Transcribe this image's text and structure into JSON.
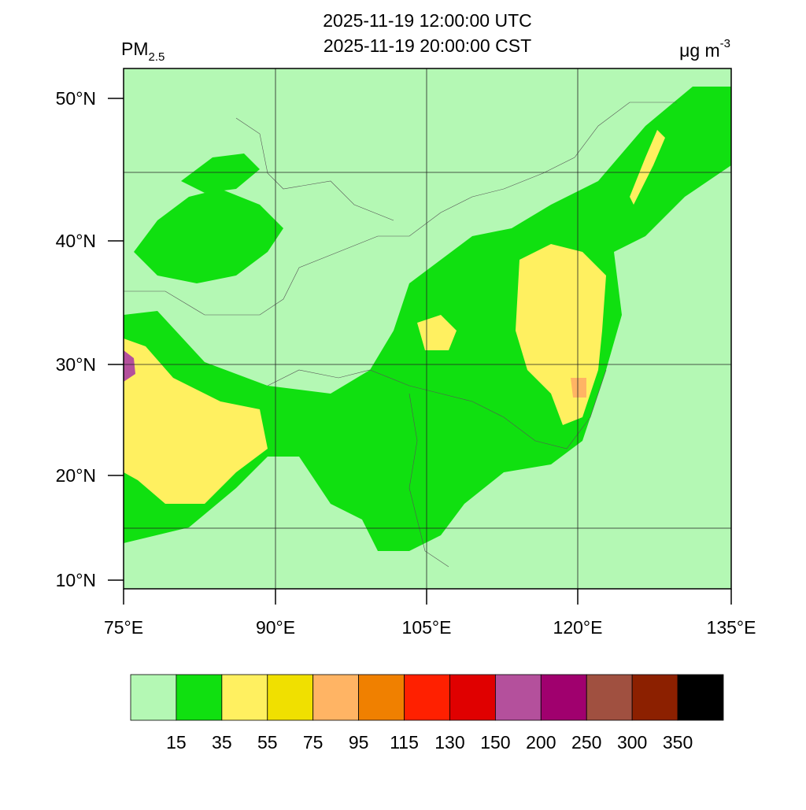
{
  "header": {
    "title_lines": [
      "2025-11-19 12:00:00 UTC",
      "2025-11-19 20:00:00 CST"
    ],
    "variable": {
      "base": "PM",
      "sub": "2.5"
    },
    "unit": {
      "base": "μg m",
      "sup": "-3"
    }
  },
  "map": {
    "lat_labels": [
      "50°N",
      "40°N",
      "30°N",
      "20°N",
      "10°N"
    ],
    "lon_labels": [
      "75°E",
      "90°E",
      "105°E",
      "120°E",
      "135°E"
    ]
  },
  "colorbar": {
    "colors": [
      "#b4f8b4",
      "#10e010",
      "#fff060",
      "#f0e000",
      "#ffb464",
      "#f08000",
      "#ff2000",
      "#e00000",
      "#b4509c",
      "#a0006e",
      "#a05040",
      "#8c2000",
      "#000000"
    ],
    "labels": [
      "15",
      "35",
      "55",
      "75",
      "95",
      "115",
      "130",
      "150",
      "200",
      "250",
      "300",
      "350"
    ]
  }
}
